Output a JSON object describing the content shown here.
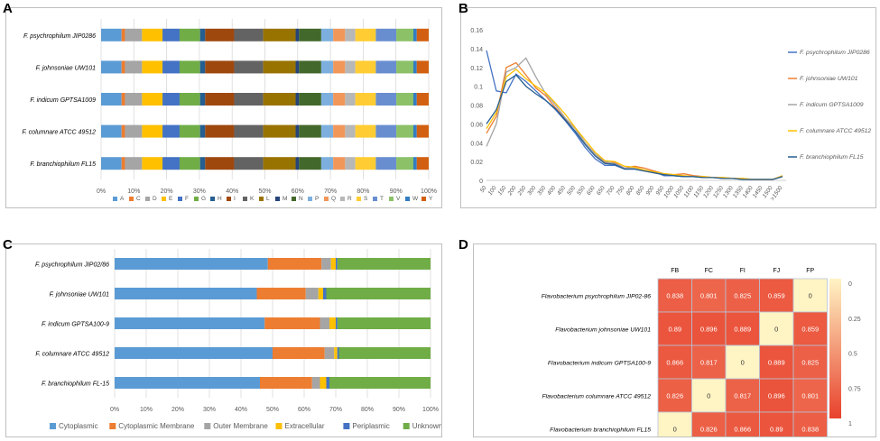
{
  "panel_labels": {
    "a": "A",
    "b": "B",
    "c": "C",
    "d": "D"
  },
  "chart_data": [
    {
      "type": "bar",
      "stacked": "percent",
      "orientation": "horizontal",
      "categories": [
        "F. psychrophilum JIP0286",
        "F. johnsoniae UW101",
        "F. indicum GPTSA1009",
        "F. columnare ATCC 49512",
        "F. branchiophilum FL15"
      ],
      "x_ticks": [
        "0%",
        "10%",
        "20%",
        "30%",
        "40%",
        "50%",
        "60%",
        "70%",
        "80%",
        "90%",
        "100%"
      ],
      "legend_position": "bottom",
      "series": [
        {
          "name": "A",
          "color": "#5b9bd5",
          "values": [
            6.0,
            6.0,
            6.0,
            6.0,
            6.0
          ]
        },
        {
          "name": "C",
          "color": "#ed7d31",
          "values": [
            1.0,
            1.0,
            1.0,
            1.0,
            1.0
          ]
        },
        {
          "name": "D",
          "color": "#a5a5a5",
          "values": [
            5.0,
            5.0,
            5.0,
            5.0,
            5.0
          ]
        },
        {
          "name": "E",
          "color": "#ffc000",
          "values": [
            6.0,
            6.0,
            6.0,
            6.0,
            6.0
          ]
        },
        {
          "name": "F",
          "color": "#4472c4",
          "values": [
            5.0,
            5.0,
            5.0,
            5.0,
            5.0
          ]
        },
        {
          "name": "G",
          "color": "#70ad47",
          "values": [
            6.0,
            6.0,
            6.0,
            6.0,
            6.0
          ]
        },
        {
          "name": "H",
          "color": "#255e91",
          "values": [
            1.5,
            1.5,
            1.5,
            1.5,
            1.5
          ]
        },
        {
          "name": "I",
          "color": "#9e480e",
          "values": [
            8.5,
            8.5,
            8.5,
            8.5,
            8.5
          ]
        },
        {
          "name": "K",
          "color": "#636363",
          "values": [
            8.5,
            8.5,
            8.5,
            8.5,
            8.5
          ]
        },
        {
          "name": "L",
          "color": "#997300",
          "values": [
            9.5,
            9.5,
            9.5,
            9.5,
            9.5
          ]
        },
        {
          "name": "M",
          "color": "#264478",
          "values": [
            1.0,
            1.0,
            1.0,
            1.0,
            1.0
          ]
        },
        {
          "name": "N",
          "color": "#43682b",
          "values": [
            6.5,
            6.5,
            6.5,
            6.5,
            6.5
          ]
        },
        {
          "name": "P",
          "color": "#7cafdd",
          "values": [
            3.5,
            3.5,
            3.5,
            3.5,
            3.5
          ]
        },
        {
          "name": "Q",
          "color": "#f1975a",
          "values": [
            3.5,
            3.5,
            3.5,
            3.5,
            3.5
          ]
        },
        {
          "name": "R",
          "color": "#b7b7b7",
          "values": [
            3.0,
            3.0,
            3.0,
            3.0,
            3.0
          ]
        },
        {
          "name": "S",
          "color": "#ffcd33",
          "values": [
            6.0,
            6.0,
            6.0,
            6.0,
            6.0
          ]
        },
        {
          "name": "T",
          "color": "#698ed0",
          "values": [
            6.0,
            6.0,
            6.0,
            6.0,
            6.0
          ]
        },
        {
          "name": "V",
          "color": "#8cc168",
          "values": [
            5.0,
            5.0,
            5.0,
            5.0,
            5.0
          ]
        },
        {
          "name": "W",
          "color": "#327dc2",
          "values": [
            1.0,
            1.0,
            1.0,
            1.0,
            1.0
          ]
        },
        {
          "name": "Y",
          "color": "#d26012",
          "values": [
            3.5,
            3.5,
            3.5,
            3.5,
            3.5
          ]
        }
      ]
    },
    {
      "type": "line",
      "x": [
        "50",
        "100",
        "150",
        "200",
        "250",
        "300",
        "350",
        "400",
        "450",
        "500",
        "550",
        "600",
        "650",
        "700",
        "750",
        "800",
        "850",
        "900",
        "950",
        "1000",
        "1050",
        "1100",
        "1150",
        "1200",
        "1250",
        "1300",
        "1350",
        "1400",
        "1450",
        "1500",
        ">1500"
      ],
      "ylim": [
        0,
        0.16
      ],
      "y_ticks": [
        "0",
        "0.02",
        "0.04",
        "0.06",
        "0.08",
        "0.1",
        "0.12",
        "0.14",
        "0.16"
      ],
      "legend_position": "right",
      "series": [
        {
          "name": "F. psychrophilum JIP0286",
          "color": "#4472c4",
          "values": [
            0.138,
            0.095,
            0.093,
            0.113,
            0.105,
            0.095,
            0.085,
            0.075,
            0.063,
            0.05,
            0.035,
            0.023,
            0.016,
            0.016,
            0.012,
            0.012,
            0.01,
            0.009,
            0.005,
            0.005,
            0.004,
            0.004,
            0.003,
            0.003,
            0.002,
            0.002,
            0.001,
            0.001,
            0.001,
            0.001,
            0.004
          ]
        },
        {
          "name": "F. johnsoniae UW101",
          "color": "#ed7d31",
          "values": [
            0.05,
            0.068,
            0.12,
            0.125,
            0.112,
            0.098,
            0.09,
            0.077,
            0.065,
            0.055,
            0.04,
            0.028,
            0.019,
            0.019,
            0.013,
            0.015,
            0.013,
            0.01,
            0.007,
            0.006,
            0.007,
            0.005,
            0.004,
            0.003,
            0.003,
            0.002,
            0.002,
            0.001,
            0.001,
            0.001,
            0.005
          ]
        },
        {
          "name": "F. indicum GPTSA1009",
          "color": "#a5a5a5",
          "values": [
            0.036,
            0.06,
            0.115,
            0.12,
            0.13,
            0.11,
            0.092,
            0.08,
            0.066,
            0.055,
            0.04,
            0.028,
            0.02,
            0.018,
            0.013,
            0.013,
            0.01,
            0.008,
            0.006,
            0.005,
            0.004,
            0.004,
            0.003,
            0.003,
            0.002,
            0.002,
            0.001,
            0.001,
            0.001,
            0.001,
            0.004
          ]
        },
        {
          "name": "F. columnare ATCC 49512",
          "color": "#ffc000",
          "values": [
            0.055,
            0.072,
            0.11,
            0.118,
            0.108,
            0.1,
            0.093,
            0.082,
            0.07,
            0.056,
            0.043,
            0.03,
            0.021,
            0.02,
            0.015,
            0.014,
            0.011,
            0.009,
            0.007,
            0.006,
            0.005,
            0.004,
            0.004,
            0.003,
            0.003,
            0.002,
            0.002,
            0.001,
            0.001,
            0.001,
            0.005
          ]
        },
        {
          "name": "F. branchiophilum FL15",
          "color": "#255e91",
          "values": [
            0.06,
            0.075,
            0.105,
            0.112,
            0.1,
            0.092,
            0.085,
            0.076,
            0.064,
            0.052,
            0.038,
            0.026,
            0.018,
            0.017,
            0.012,
            0.012,
            0.01,
            0.008,
            0.006,
            0.005,
            0.004,
            0.004,
            0.003,
            0.003,
            0.002,
            0.002,
            0.001,
            0.001,
            0.001,
            0.001,
            0.004
          ]
        }
      ]
    },
    {
      "type": "bar",
      "stacked": "percent",
      "orientation": "horizontal",
      "categories": [
        "F. psychrophilum JIP02/86",
        "F. johnsoniae UW101",
        "F. indicum GPTSA100-9",
        "F. columnare ATCC 49512",
        "F. branchiophilum FL-15"
      ],
      "x_ticks": [
        "0%",
        "10%",
        "20%",
        "30%",
        "40%",
        "50%",
        "60%",
        "70%",
        "80%",
        "90%",
        "100%"
      ],
      "legend_position": "bottom",
      "series": [
        {
          "name": "Cytoplasmic",
          "color": "#5b9bd5",
          "values": [
            48.5,
            45.0,
            47.5,
            50.0,
            46.0
          ]
        },
        {
          "name": "Cytoplasmic Membrane",
          "color": "#ed7d31",
          "values": [
            17.0,
            15.5,
            17.5,
            16.5,
            16.5
          ]
        },
        {
          "name": "Outer Membrane",
          "color": "#a5a5a5",
          "values": [
            3.0,
            4.0,
            3.0,
            3.0,
            2.5
          ]
        },
        {
          "name": "Extracellular",
          "color": "#ffc000",
          "values": [
            1.5,
            1.5,
            2.0,
            1.0,
            2.0
          ]
        },
        {
          "name": "Periplasmic",
          "color": "#4472c4",
          "values": [
            0.5,
            1.0,
            0.5,
            0.5,
            1.0
          ]
        },
        {
          "name": "Unknown",
          "color": "#70ad47",
          "values": [
            29.5,
            33.0,
            29.5,
            29.0,
            32.0
          ]
        }
      ]
    },
    {
      "type": "heatmap",
      "columns": [
        "FB",
        "FC",
        "FI",
        "FJ",
        "FP"
      ],
      "rows": [
        "Flavobacterium psychrophilum JIP02-86",
        "Flavobacterium johnsoniae UW101",
        "Flavobacterium indicum GPTSA100-9",
        "Flavobacterium columnare ATCC 49512",
        "Flavobacterium branchiophilum FL15"
      ],
      "values": [
        [
          0.838,
          0.801,
          0.825,
          0.859,
          0
        ],
        [
          0.89,
          0.896,
          0.889,
          0,
          0.859
        ],
        [
          0.866,
          0.817,
          0,
          0.889,
          0.825
        ],
        [
          0.826,
          0,
          0.817,
          0.896,
          0.801
        ],
        [
          0,
          0.826,
          0.866,
          0.89,
          0.838
        ]
      ],
      "colorbar": {
        "ticks": [
          "0",
          "0.25",
          "0.5",
          "0.75",
          "1"
        ],
        "range": [
          0,
          1
        ],
        "low_color": "#fff4c4",
        "high_color": "#e8412c"
      }
    }
  ]
}
